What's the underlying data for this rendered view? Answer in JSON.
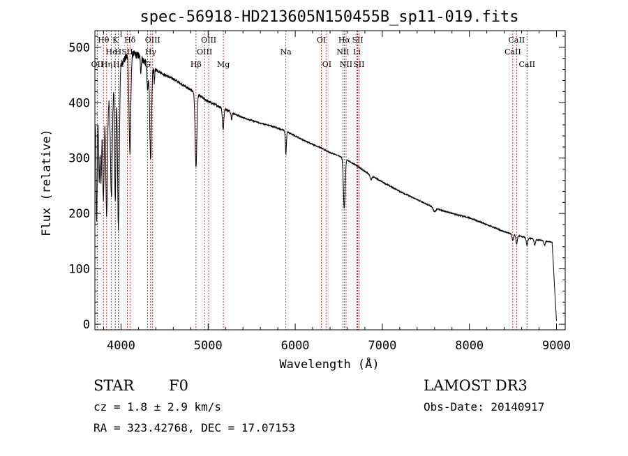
{
  "chart_data": {
    "type": "line",
    "title": "spec-56918-HD213605N150455B_sp11-019.fits",
    "xlabel": "Wavelength (Å)",
    "ylabel": "Flux (relative)",
    "xlim": [
      3700,
      9100
    ],
    "ylim": [
      -10,
      530
    ],
    "x_ticks": [
      4000,
      5000,
      6000,
      7000,
      8000,
      9000
    ],
    "y_ticks": [
      0,
      100,
      200,
      300,
      400,
      500
    ],
    "grid": false,
    "series": [
      {
        "name": "spectrum",
        "continuum": [
          [
            3700,
            360
          ],
          [
            3800,
            380
          ],
          [
            3900,
            420
          ],
          [
            4000,
            470
          ],
          [
            4100,
            490
          ],
          [
            4200,
            485
          ],
          [
            4300,
            470
          ],
          [
            4400,
            460
          ],
          [
            4500,
            450
          ],
          [
            4600,
            443
          ],
          [
            4700,
            433
          ],
          [
            4800,
            423
          ],
          [
            4900,
            413
          ],
          [
            5000,
            402
          ],
          [
            5100,
            395
          ],
          [
            5200,
            388
          ],
          [
            5300,
            380
          ],
          [
            5400,
            373
          ],
          [
            5500,
            368
          ],
          [
            5600,
            363
          ],
          [
            5700,
            359
          ],
          [
            5800,
            354
          ],
          [
            5900,
            348
          ],
          [
            6000,
            340
          ],
          [
            6100,
            332
          ],
          [
            6200,
            325
          ],
          [
            6300,
            318
          ],
          [
            6400,
            310
          ],
          [
            6500,
            304
          ],
          [
            6600,
            296
          ],
          [
            6700,
            287
          ],
          [
            6800,
            276
          ],
          [
            6900,
            266
          ],
          [
            7000,
            257
          ],
          [
            7200,
            240
          ],
          [
            7400,
            225
          ],
          [
            7600,
            210
          ],
          [
            7800,
            200
          ],
          [
            8000,
            192
          ],
          [
            8200,
            180
          ],
          [
            8400,
            167
          ],
          [
            8600,
            158
          ],
          [
            8800,
            152
          ],
          [
            8950,
            148
          ],
          [
            8980,
            60
          ],
          [
            9000,
            5
          ]
        ],
        "absorption_features": [
          {
            "center": 3720,
            "depth": 0.5,
            "width": 6
          },
          {
            "center": 3750,
            "depth": 0.3,
            "width": 6
          },
          {
            "center": 3770,
            "depth": 0.32,
            "width": 7
          },
          {
            "center": 3798,
            "depth": 0.4,
            "width": 8
          },
          {
            "center": 3835,
            "depth": 0.5,
            "width": 9
          },
          {
            "center": 3889,
            "depth": 0.45,
            "width": 10
          },
          {
            "center": 3934,
            "depth": 0.5,
            "width": 7
          },
          {
            "center": 3970,
            "depth": 0.62,
            "width": 10
          },
          {
            "center": 4102,
            "depth": 0.37,
            "width": 10
          },
          {
            "center": 4227,
            "depth": 0.05,
            "width": 5
          },
          {
            "center": 4305,
            "depth": 0.1,
            "width": 8
          },
          {
            "center": 4340,
            "depth": 0.37,
            "width": 10
          },
          {
            "center": 4383,
            "depth": 0.05,
            "width": 5
          },
          {
            "center": 4861,
            "depth": 0.32,
            "width": 10
          },
          {
            "center": 5172,
            "depth": 0.1,
            "width": 8
          },
          {
            "center": 5270,
            "depth": 0.03,
            "width": 6
          },
          {
            "center": 5893,
            "depth": 0.12,
            "width": 6
          },
          {
            "center": 6563,
            "depth": 0.3,
            "width": 10
          },
          {
            "center": 6870,
            "depth": 0.03,
            "width": 10
          },
          {
            "center": 7600,
            "depth": 0.03,
            "width": 15
          },
          {
            "center": 8498,
            "depth": 0.07,
            "width": 8
          },
          {
            "center": 8542,
            "depth": 0.1,
            "width": 8
          },
          {
            "center": 8662,
            "depth": 0.09,
            "width": 8
          },
          {
            "center": 8750,
            "depth": 0.07,
            "width": 8
          },
          {
            "center": 8863,
            "depth": 0.05,
            "width": 8
          }
        ]
      }
    ],
    "line_markers": [
      {
        "label": "OII",
        "wavelength": 3727,
        "row": 2
      },
      {
        "label": "Hθ",
        "wavelength": 3798,
        "row": 0
      },
      {
        "label": "Hη",
        "wavelength": 3835,
        "row": 2
      },
      {
        "label": "He",
        "wavelength": 3889,
        "row": 1
      },
      {
        "label": "K",
        "wavelength": 3934,
        "row": 0
      },
      {
        "label": "H",
        "wavelength": 3968,
        "row": 1
      },
      {
        "label": "Hε",
        "wavelength": 3970,
        "row": 2
      },
      {
        "label": "SII",
        "wavelength": 4072,
        "row": 1
      },
      {
        "label": "Hδ",
        "wavelength": 4102,
        "row": 0
      },
      {
        "label": "G",
        "wavelength": 4305,
        "row": 2
      },
      {
        "label": "OIII",
        "wavelength": 4363,
        "row": 0
      },
      {
        "label": "Hγ",
        "wavelength": 4340,
        "row": 1
      },
      {
        "label": "Hβ",
        "wavelength": 4861,
        "row": 2
      },
      {
        "label": "OIII",
        "wavelength": 4959,
        "row": 1
      },
      {
        "label": "OIII",
        "wavelength": 5007,
        "row": 0
      },
      {
        "label": "Mg",
        "wavelength": 5175,
        "row": 2
      },
      {
        "label": "Na",
        "wavelength": 5893,
        "row": 1
      },
      {
        "label": "OI",
        "wavelength": 6300,
        "row": 0
      },
      {
        "label": "OI",
        "wavelength": 6363,
        "row": 2
      },
      {
        "label": "NII",
        "wavelength": 6548,
        "row": 1
      },
      {
        "label": "Hα",
        "wavelength": 6563,
        "row": 0
      },
      {
        "label": "NII",
        "wavelength": 6584,
        "row": 2
      },
      {
        "label": "Li",
        "wavelength": 6708,
        "row": 1
      },
      {
        "label": "SII",
        "wavelength": 6717,
        "row": 0
      },
      {
        "label": "SII",
        "wavelength": 6731,
        "row": 2
      },
      {
        "label": "CaII",
        "wavelength": 8498,
        "row": 1
      },
      {
        "label": "CaII",
        "wavelength": 8542,
        "row": 0
      },
      {
        "label": "CaII",
        "wavelength": 8662,
        "row": 2
      }
    ]
  },
  "info": {
    "object_class": "STAR",
    "subclass": "F0",
    "survey": "LAMOST DR3",
    "cz": "cz = 1.8 ± 2.9 km/s",
    "obs_date": "Obs-Date: 20140917",
    "coords": "RA = 323.42768, DEC =  17.07153"
  },
  "colors": {
    "spectrum": "#000000",
    "marker": "#b02020",
    "axes": "#000000"
  }
}
